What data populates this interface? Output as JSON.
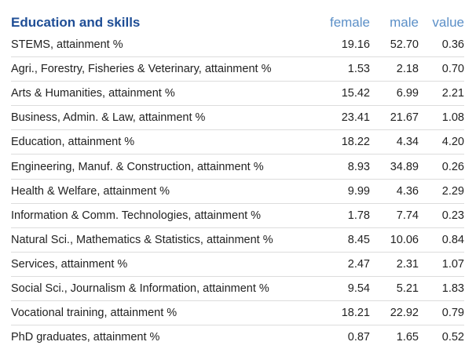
{
  "table": {
    "title": "Education and skills",
    "columns": [
      "female",
      "male",
      "value"
    ],
    "rows": [
      {
        "label": "STEMS, attainment %",
        "female": "19.16",
        "male": "52.70",
        "value": "0.36"
      },
      {
        "label": "Agri., Forestry, Fisheries & Veterinary, attainment %",
        "female": "1.53",
        "male": "2.18",
        "value": "0.70"
      },
      {
        "label": "Arts & Humanities, attainment %",
        "female": "15.42",
        "male": "6.99",
        "value": "2.21"
      },
      {
        "label": "Business, Admin. & Law, attainment %",
        "female": "23.41",
        "male": "21.67",
        "value": "1.08"
      },
      {
        "label": "Education, attainment %",
        "female": "18.22",
        "male": "4.34",
        "value": "4.20"
      },
      {
        "label": "Engineering, Manuf. & Construction, attainment %",
        "female": "8.93",
        "male": "34.89",
        "value": "0.26"
      },
      {
        "label": "Health & Welfare, attainment %",
        "female": "9.99",
        "male": "4.36",
        "value": "2.29"
      },
      {
        "label": "Information & Comm. Technologies, attainment %",
        "female": "1.78",
        "male": "7.74",
        "value": "0.23"
      },
      {
        "label": "Natural Sci., Mathematics & Statistics, attainment %",
        "female": "8.45",
        "male": "10.06",
        "value": "0.84"
      },
      {
        "label": "Services, attainment %",
        "female": "2.47",
        "male": "2.31",
        "value": "1.07"
      },
      {
        "label": "Social Sci., Journalism & Information, attainment %",
        "female": "9.54",
        "male": "5.21",
        "value": "1.83"
      },
      {
        "label": "Vocational training, attainment %",
        "female": "18.21",
        "male": "22.92",
        "value": "0.79"
      },
      {
        "label": "PhD graduates, attainment %",
        "female": "0.87",
        "male": "1.65",
        "value": "0.52"
      }
    ]
  },
  "colors": {
    "title": "#1f4e96",
    "column_header": "#5b8fc7",
    "text": "#222222",
    "row_divider": "#dddddd"
  }
}
